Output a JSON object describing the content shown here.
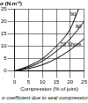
{
  "chart_data": {
    "type": "line",
    "y_label": "σ (N.m⁻²)",
    "x_label": "Compression (% of joint)",
    "caption": "σ coefficient due to seal compression",
    "series": [
      {
        "name": "90",
        "color": "#000000",
        "x": [
          0,
          5,
          10,
          15,
          20,
          23
        ],
        "values": [
          0,
          2,
          5,
          10,
          17,
          25
        ]
      },
      {
        "name": "80",
        "color": "#000000",
        "x": [
          0,
          5,
          10,
          15,
          20,
          25
        ],
        "values": [
          0,
          1.5,
          4,
          8,
          13,
          20
        ]
      },
      {
        "name": "70 Shore",
        "color": "#000000",
        "x": [
          0,
          5,
          10,
          15,
          20,
          25
        ],
        "values": [
          0,
          1,
          2.5,
          5,
          8.5,
          13
        ]
      }
    ],
    "xlim": [
      0,
      25
    ],
    "xticks": [
      0,
      5,
      10,
      15,
      20,
      25
    ],
    "ylim": [
      0,
      25
    ],
    "yticks": [
      0,
      5,
      10,
      15,
      20,
      25
    ],
    "grid": true
  }
}
